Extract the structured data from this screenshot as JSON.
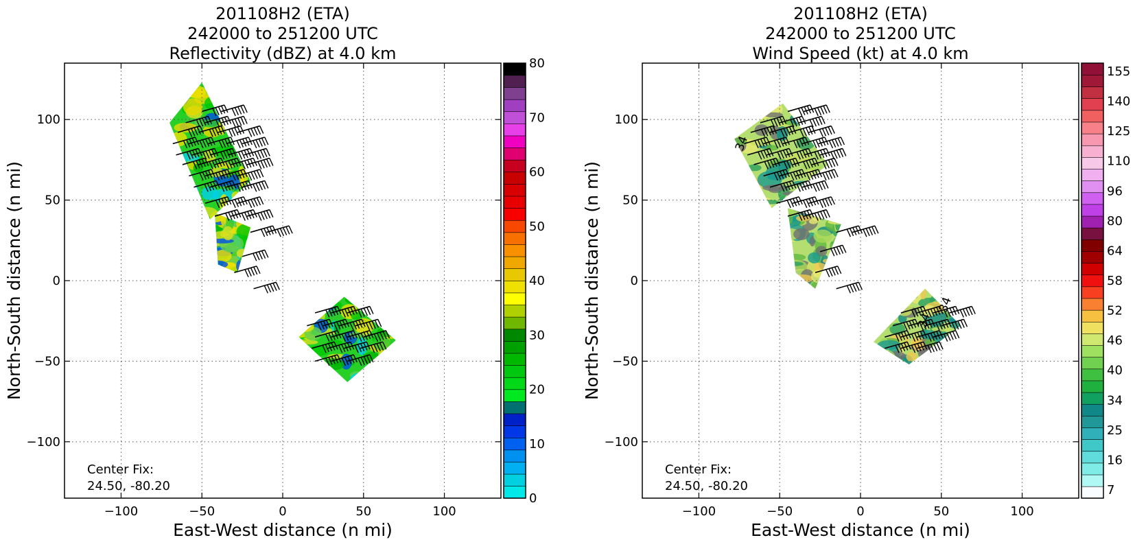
{
  "chart_data": [
    {
      "type": "heatmap",
      "title": [
        "201108H2 (ETA)",
        "242000 to 251200 UTC",
        "Reflectivity (dBZ) at 4.0 km"
      ],
      "xlabel": "East-West distance (n mi)",
      "ylabel": "North-South distance (n mi)",
      "xlim": [
        -135,
        135
      ],
      "ylim": [
        -135,
        135
      ],
      "xticks": [
        -100,
        -50,
        0,
        50,
        100
      ],
      "yticks": [
        -100,
        -50,
        0,
        50,
        100
      ],
      "xtick_labels": [
        "−100",
        "−50",
        "0",
        "50",
        "100"
      ],
      "ytick_labels": [
        "−100",
        "−50",
        "0",
        "50",
        "100"
      ],
      "grid": true,
      "center_fix_label": "Center Fix:",
      "center_fix_value": "24.50, -80.20",
      "colorbar": {
        "min": 0,
        "max": 80,
        "ticks": [
          0,
          10,
          20,
          30,
          40,
          50,
          60,
          70,
          80
        ],
        "tick_labels": [
          "0",
          "10",
          "20",
          "30",
          "40",
          "50",
          "60",
          "70",
          "80"
        ],
        "colors": [
          "#00e8e8",
          "#00d0e0",
          "#00b0f0",
          "#0090f0",
          "#0060f0",
          "#0038e8",
          "#0020c8",
          "#007070",
          "#00e820",
          "#00d818",
          "#00c810",
          "#00b800",
          "#00a000",
          "#008800",
          "#70b800",
          "#b0d000",
          "#ffff00",
          "#f0e000",
          "#e8c800",
          "#f0a800",
          "#f89000",
          "#f87000",
          "#f84800",
          "#f80000",
          "#e80000",
          "#d80000",
          "#c80000",
          "#c80020",
          "#e00070",
          "#f000c0",
          "#e840e8",
          "#c050d8",
          "#a040c0",
          "#804090",
          "#502050",
          "#000000"
        ]
      },
      "regions": [
        {
          "name": "north-swath",
          "corners": [
            [
              -70,
              98
            ],
            [
              -50,
              123
            ],
            [
              -20,
              62
            ],
            [
              -45,
              38
            ]
          ]
        },
        {
          "name": "mid-bridge",
          "corners": [
            [
              -42,
              42
            ],
            [
              -20,
              33
            ],
            [
              -28,
              5
            ],
            [
              -40,
              10
            ]
          ]
        },
        {
          "name": "south-swath",
          "corners": [
            [
              10,
              -35
            ],
            [
              38,
              -10
            ],
            [
              70,
              -37
            ],
            [
              40,
              -63
            ]
          ]
        }
      ],
      "barb_rows": [
        {
          "y": 105,
          "x": [
            -50,
            -38
          ]
        },
        {
          "y": 98,
          "x": [
            -60,
            -48,
            -38
          ]
        },
        {
          "y": 92,
          "x": [
            -65,
            -52,
            -40,
            -28
          ]
        },
        {
          "y": 85,
          "x": [
            -68,
            -58,
            -46,
            -35,
            -25
          ]
        },
        {
          "y": 78,
          "x": [
            -66,
            -56,
            -45,
            -34,
            -24
          ]
        },
        {
          "y": 72,
          "x": [
            -62,
            -52,
            -42,
            -32,
            -22
          ]
        },
        {
          "y": 65,
          "x": [
            -58,
            -48,
            -38,
            -28
          ]
        },
        {
          "y": 58,
          "x": [
            -55,
            -45,
            -35,
            -25
          ]
        },
        {
          "y": 48,
          "x": [
            -48,
            -38,
            -28
          ]
        },
        {
          "y": 40,
          "x": [
            -42,
            -32,
            -22
          ]
        },
        {
          "y": 30,
          "x": [
            -20,
            -10
          ]
        },
        {
          "y": 15,
          "x": [
            -25
          ]
        },
        {
          "y": 5,
          "x": [
            -30
          ]
        },
        {
          "y": -5,
          "x": [
            -18
          ]
        },
        {
          "y": -20,
          "x": [
            20,
            30,
            40
          ]
        },
        {
          "y": -28,
          "x": [
            15,
            25,
            35,
            45
          ]
        },
        {
          "y": -35,
          "x": [
            20,
            30,
            40,
            50
          ]
        },
        {
          "y": -42,
          "x": [
            18,
            28,
            38,
            48
          ]
        },
        {
          "y": -50,
          "x": [
            20,
            30,
            40
          ]
        }
      ]
    },
    {
      "type": "heatmap",
      "title": [
        "201108H2 (ETA)",
        "242000 to 251200 UTC",
        "Wind Speed (kt) at 4.0 km"
      ],
      "xlabel": "East-West distance (n mi)",
      "ylabel": "North-South distance (n mi)",
      "xlim": [
        -135,
        135
      ],
      "ylim": [
        -135,
        135
      ],
      "xticks": [
        -100,
        -50,
        0,
        50,
        100
      ],
      "yticks": [
        -100,
        -50,
        0,
        50,
        100
      ],
      "xtick_labels": [
        "−100",
        "−50",
        "0",
        "50",
        "100"
      ],
      "ytick_labels": [
        "−100",
        "−50",
        "0",
        "50",
        "100"
      ],
      "grid": true,
      "center_fix_label": "Center Fix:",
      "center_fix_value": "24.50, -80.20",
      "contour_labels": [
        "34",
        "34",
        "34"
      ],
      "colorbar": {
        "labels": [
          "7",
          "16",
          "25",
          "34",
          "40",
          "46",
          "52",
          "58",
          "64",
          "80",
          "96",
          "110",
          "125",
          "140",
          "155"
        ],
        "colors": [
          "#f8fcff",
          "#b0f8f4",
          "#80ece8",
          "#60dcdc",
          "#40c8c8",
          "#30b0b8",
          "#209898",
          "#108888",
          "#10a060",
          "#20b040",
          "#40c040",
          "#70d050",
          "#a0e060",
          "#d0e870",
          "#f0e060",
          "#f8c040",
          "#f88030",
          "#f84020",
          "#f01010",
          "#d00000",
          "#a00000",
          "#800000",
          "#781040",
          "#a020b0",
          "#c040e8",
          "#d060f0",
          "#e090f0",
          "#f0b0f0",
          "#f8c8e8",
          "#f8b0d0",
          "#f898b0",
          "#f88088",
          "#f06060",
          "#e04050",
          "#c03040",
          "#a01838",
          "#901038"
        ]
      },
      "regions": [
        {
          "name": "north-swath",
          "corners": [
            [
              -78,
              88
            ],
            [
              -48,
              110
            ],
            [
              -20,
              72
            ],
            [
              -55,
              45
            ]
          ]
        },
        {
          "name": "mid-band",
          "corners": [
            [
              -45,
              45
            ],
            [
              -12,
              35
            ],
            [
              -28,
              -5
            ],
            [
              -40,
              5
            ]
          ]
        },
        {
          "name": "south-swath",
          "corners": [
            [
              8,
              -38
            ],
            [
              40,
              -5
            ],
            [
              62,
              -28
            ],
            [
              30,
              -52
            ]
          ]
        }
      ],
      "barb_rows": [
        {
          "y": 105,
          "x": [
            -45,
            -35
          ]
        },
        {
          "y": 98,
          "x": [
            -62,
            -50,
            -38
          ]
        },
        {
          "y": 92,
          "x": [
            -68,
            -56,
            -44,
            -32
          ]
        },
        {
          "y": 85,
          "x": [
            -72,
            -60,
            -48,
            -36,
            -26
          ]
        },
        {
          "y": 78,
          "x": [
            -70,
            -58,
            -46,
            -35,
            -25
          ]
        },
        {
          "y": 72,
          "x": [
            -66,
            -54,
            -42,
            -30
          ]
        },
        {
          "y": 65,
          "x": [
            -60,
            -50,
            -40,
            -30
          ]
        },
        {
          "y": 58,
          "x": [
            -56,
            -46,
            -36
          ]
        },
        {
          "y": 48,
          "x": [
            -52,
            -42,
            -32
          ]
        },
        {
          "y": 40,
          "x": [
            -45,
            -35
          ]
        },
        {
          "y": 30,
          "x": [
            -15,
            -5
          ]
        },
        {
          "y": 18,
          "x": [
            -25
          ]
        },
        {
          "y": 5,
          "x": [
            -28
          ]
        },
        {
          "y": -5,
          "x": [
            -15
          ]
        },
        {
          "y": -20,
          "x": [
            25,
            35,
            45,
            55
          ]
        },
        {
          "y": -28,
          "x": [
            20,
            30,
            40,
            50
          ]
        },
        {
          "y": -35,
          "x": [
            15,
            25,
            35,
            45
          ]
        },
        {
          "y": -42,
          "x": [
            15,
            25,
            35
          ]
        }
      ]
    }
  ]
}
